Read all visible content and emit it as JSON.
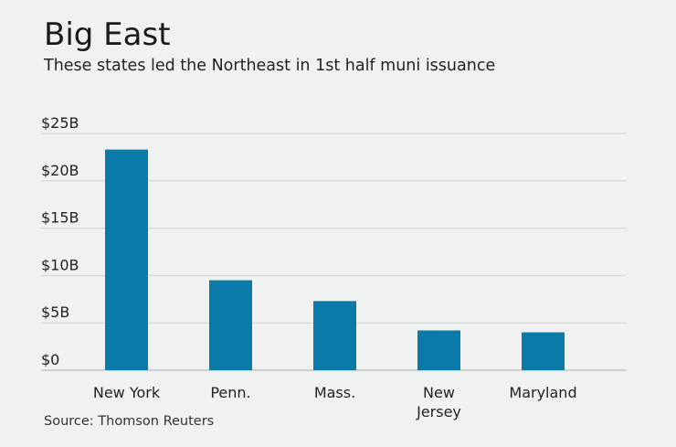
{
  "header": {
    "title": "Big East",
    "subtitle": "These states led the Northeast in 1st half muni issuance"
  },
  "footer": {
    "source": "Source: Thomson Reuters"
  },
  "colors": {
    "bar": "#0a7ba8",
    "grid": "#cfd3d6",
    "baseline": "#a9aeb2",
    "background": "#f0f1f1"
  },
  "chart_data": {
    "type": "bar",
    "categories": [
      "New York",
      "Penn.",
      "Mass.",
      "New\nJersey",
      "Maryland"
    ],
    "values": [
      23.3,
      9.5,
      7.3,
      4.2,
      4.0
    ],
    "title": "Big East",
    "subtitle": "These states led the Northeast in 1st half muni issuance",
    "xlabel": "",
    "ylabel": "",
    "ylim": [
      0,
      25
    ],
    "yticks": [
      0,
      5,
      10,
      15,
      20,
      25
    ],
    "ytick_labels": [
      "$0",
      "$5B",
      "$10B",
      "$15B",
      "$20B",
      "$25B"
    ],
    "grid": true,
    "legend": "none"
  }
}
